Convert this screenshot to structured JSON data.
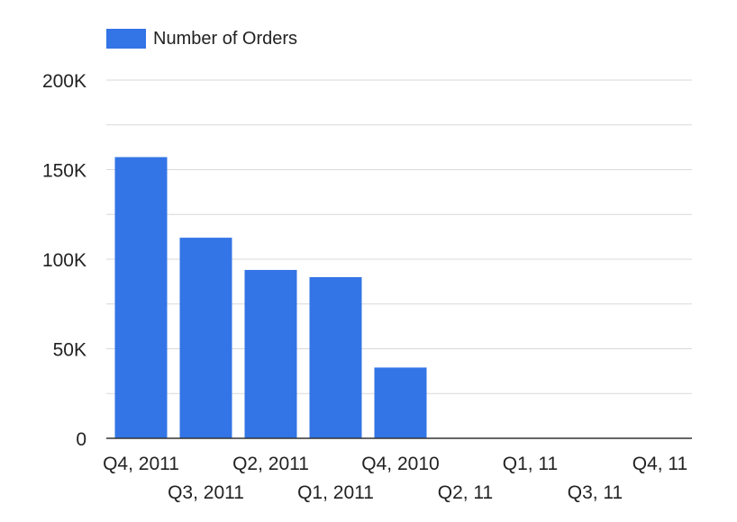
{
  "colors": {
    "bar": "#3374e6",
    "grid": "#d9d9d9",
    "axis": "#333333",
    "text": "#222222"
  },
  "chart_data": {
    "type": "bar",
    "legend": {
      "position": "top-left",
      "entries": [
        "Number of Orders"
      ]
    },
    "categories": [
      "Q4, 2011",
      "Q3, 2011",
      "Q2, 2011",
      "Q1, 2011",
      "Q4, 2010",
      "Q2, 11",
      "Q1, 11",
      "Q3, 11",
      "Q4, 11"
    ],
    "series": [
      {
        "name": "Number of Orders",
        "values": [
          157000,
          112000,
          94000,
          90000,
          39500,
          0,
          0,
          0,
          0
        ]
      }
    ],
    "y_ticks": [
      "0",
      "50K",
      "100K",
      "150K",
      "200K"
    ],
    "ylim": [
      0,
      200000
    ],
    "y_tick_step": 50000,
    "grid": true,
    "minor_grid_step": 25000,
    "title": "",
    "xlabel": "",
    "ylabel": ""
  }
}
